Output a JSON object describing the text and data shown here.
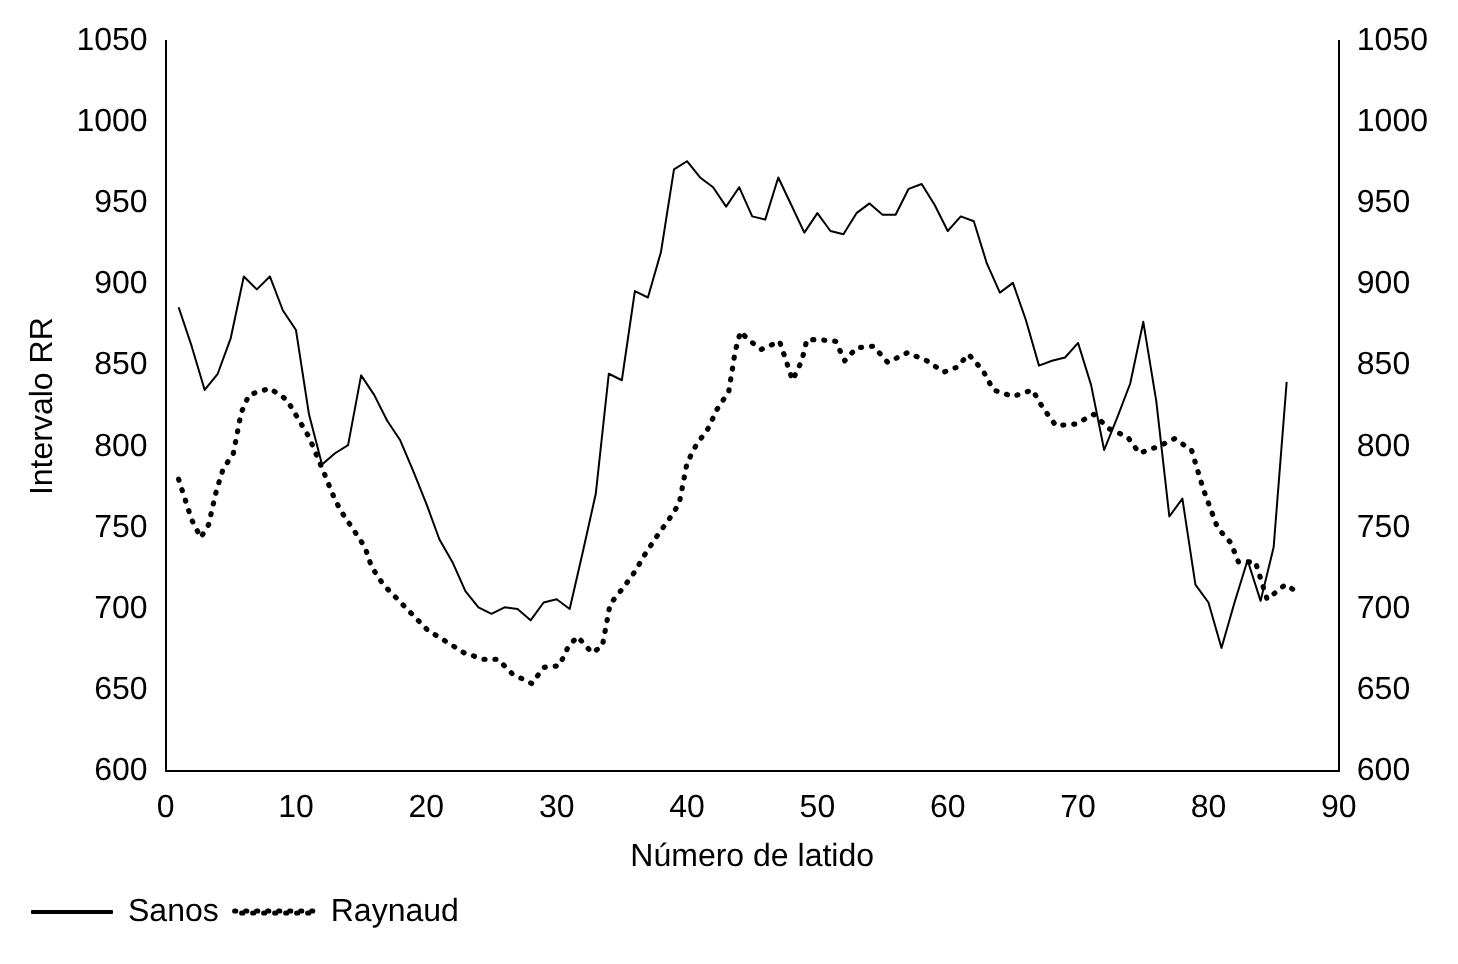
{
  "chart_data": {
    "type": "line",
    "xlabel": "Número de latido",
    "ylabel": "Intervalo RR",
    "xlim": [
      0,
      90
    ],
    "xticks": [
      0,
      10,
      20,
      30,
      40,
      50,
      60,
      70,
      80,
      90
    ],
    "ylim": [
      600,
      1050
    ],
    "yticks": [
      600,
      650,
      700,
      750,
      800,
      850,
      900,
      950,
      1000,
      1050
    ],
    "y2lim": [
      600,
      1050
    ],
    "y2ticks": [
      600,
      650,
      700,
      750,
      800,
      850,
      900,
      950,
      1000,
      1050
    ],
    "grid": false,
    "legend": "bottom left",
    "marker": "none",
    "series": [
      {
        "name": "Sanos",
        "color": "#000000",
        "line_style": "solid",
        "x": [
          1,
          2,
          3,
          4,
          5,
          6,
          7,
          8,
          9,
          10,
          11,
          12,
          13,
          14,
          15,
          16,
          17,
          18,
          19,
          20,
          21,
          22,
          23,
          24,
          25,
          26,
          27,
          28,
          29,
          30,
          31,
          32,
          33,
          34,
          35,
          36,
          37,
          38,
          39,
          40,
          41,
          42,
          43,
          44,
          45,
          46,
          47,
          48,
          49,
          50,
          51,
          52,
          53,
          54,
          55,
          56,
          57,
          58,
          59,
          60,
          61,
          62,
          63,
          64,
          65,
          66,
          67,
          68,
          69,
          70,
          71,
          72,
          73,
          74,
          75,
          76,
          77,
          78,
          79,
          80,
          81,
          82,
          83,
          84,
          85,
          86
        ],
        "values": [
          886,
          862,
          835,
          845,
          867,
          905,
          897,
          905,
          884,
          872,
          820,
          789,
          796,
          801,
          844,
          832,
          816,
          804,
          785,
          765,
          743,
          729,
          711,
          701,
          697,
          701,
          700,
          693,
          704,
          706,
          700,
          735,
          771,
          845,
          841,
          896,
          892,
          920,
          971,
          976,
          966,
          960,
          948,
          960,
          942,
          940,
          966,
          949,
          932,
          944,
          933,
          931,
          944,
          950,
          943,
          943,
          959,
          962,
          949,
          933,
          942,
          939,
          913,
          895,
          901,
          878,
          850,
          853,
          855,
          864,
          838,
          798,
          818,
          839,
          877,
          828,
          757,
          768,
          715,
          704,
          676,
          704,
          730,
          705,
          738,
          840
        ]
      },
      {
        "name": "Raynaud",
        "color": "#000000",
        "line_style": "dotted",
        "x": [
          1,
          2,
          2.7,
          3.3,
          3.9,
          4.4,
          5.2,
          5.8,
          6.4,
          8,
          9.3,
          11,
          12.2,
          12.8,
          13.4,
          14.4,
          15.3,
          15.8,
          16.7,
          17.8,
          19,
          20.1,
          21.5,
          22.9,
          24.4,
          25.5,
          26.6,
          28.1,
          29,
          30.2,
          30.9,
          31.6,
          32.7,
          33.5,
          34.1,
          35.1,
          36,
          36.8,
          37.7,
          38.6,
          39.4,
          40,
          40.7,
          41.6,
          42.3,
          43.2,
          43.7,
          44.1,
          44.7,
          45.7,
          47.1,
          48.1,
          48.8,
          49.2,
          50.1,
          51.4,
          52.1,
          53,
          54.3,
          55.4,
          56.9,
          58.4,
          59.7,
          60.7,
          61.6,
          62.7,
          63.5,
          65,
          66.5,
          67.3,
          68.3,
          69.8,
          71.2,
          72.4,
          73.8,
          74.7,
          76.1,
          77.4,
          78.7,
          79.6,
          80.7,
          81.7,
          82.3,
          83.6,
          84.5,
          85.9,
          86.9
        ],
        "values": [
          780,
          755,
          744,
          752,
          773,
          786,
          796,
          821,
          832,
          836,
          829,
          806,
          783,
          771,
          761,
          749,
          738,
          726,
          715,
          706,
          696,
          687,
          680,
          673,
          669,
          669,
          660,
          654,
          664,
          665,
          677,
          683,
          673,
          677,
          703,
          713,
          723,
          734,
          745,
          755,
          765,
          790,
          801,
          811,
          823,
          834,
          859,
          871,
          866,
          860,
          865,
          841,
          853,
          866,
          866,
          865,
          853,
          861,
          862,
          852,
          858,
          853,
          846,
          849,
          857,
          847,
          835,
          831,
          835,
          824,
          813,
          814,
          820,
          811,
          806,
          796,
          800,
          805,
          798,
          774,
          750,
          741,
          729,
          729,
          706,
          715,
          710
        ]
      }
    ]
  }
}
